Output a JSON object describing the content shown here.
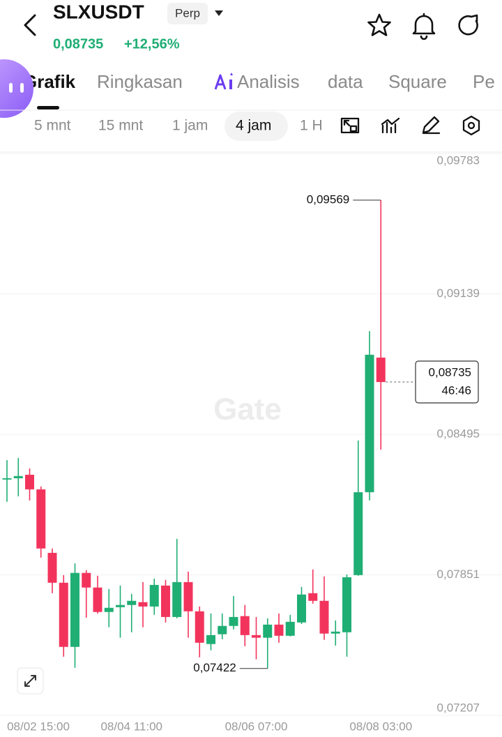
{
  "header": {
    "symbol": "SLXUSDT",
    "badge": "Perp",
    "price": "0,08735",
    "change": "+12,56%"
  },
  "tabs": [
    {
      "label": "Grafik",
      "active": true
    },
    {
      "label": "Ringkasan"
    },
    {
      "label": "Analisis"
    },
    {
      "label": "data"
    },
    {
      "label": "Square"
    },
    {
      "label": "Pe"
    }
  ],
  "intervals": [
    {
      "label": "5 mnt"
    },
    {
      "label": "15 mnt"
    },
    {
      "label": "1 jam"
    },
    {
      "label": "4 jam",
      "active": true
    },
    {
      "label": "1 H"
    }
  ],
  "chart_data": {
    "type": "candlestick",
    "watermark": "Gate",
    "categories": [
      "08/02 15:00",
      null,
      null,
      null,
      null,
      null,
      null,
      null,
      null,
      null,
      null,
      "08/04 11:00",
      null,
      null,
      null,
      null,
      null,
      null,
      null,
      null,
      null,
      null,
      "08/06 07:00",
      null,
      null,
      null,
      null,
      null,
      null,
      null,
      null,
      null,
      null,
      "08/08 03:00"
    ],
    "open": [
      0.08288,
      0.08294,
      0.0831,
      0.08243,
      0.07952,
      0.07815,
      0.07521,
      0.0786,
      0.07793,
      0.07681,
      0.07703,
      0.07713,
      0.07726,
      0.07706,
      0.07802,
      0.07658,
      0.07818,
      0.07684,
      0.07534,
      0.07579,
      0.07617,
      0.07662,
      0.07575,
      0.07563,
      0.07623,
      0.07572,
      0.07633,
      0.07767,
      0.07732,
      0.07582,
      0.07588,
      0.0785,
      0.0823,
      0.08847
    ],
    "high": [
      0.08377,
      0.08387,
      0.08339,
      0.08256,
      0.07972,
      0.0785,
      0.07904,
      0.07873,
      0.07847,
      0.07786,
      0.07802,
      0.07764,
      0.07818,
      0.07834,
      0.07828,
      0.08016,
      0.07866,
      0.07706,
      0.07674,
      0.07674,
      0.07754,
      0.07713,
      0.07658,
      0.07652,
      0.07674,
      0.07668,
      0.07796,
      0.07876,
      0.07844,
      0.07642,
      0.07853,
      0.08467,
      0.08968,
      0.09569
    ],
    "low": [
      0.08186,
      0.08211,
      0.08192,
      0.0793,
      0.07767,
      0.07476,
      0.07425,
      0.07655,
      0.07674,
      0.07611,
      0.07563,
      0.07588,
      0.07611,
      0.07668,
      0.07633,
      0.07652,
      0.07563,
      0.07473,
      0.07505,
      0.07556,
      0.07601,
      0.07524,
      0.07464,
      0.07422,
      0.0754,
      0.07569,
      0.07626,
      0.07719,
      0.07553,
      0.07527,
      0.07476,
      0.07847,
      0.08192,
      0.08425
    ],
    "close": [
      0.08294,
      0.08304,
      0.08243,
      0.07972,
      0.07815,
      0.07521,
      0.0786,
      0.07793,
      0.07681,
      0.077,
      0.07713,
      0.07732,
      0.07706,
      0.07805,
      0.07658,
      0.07818,
      0.07684,
      0.0754,
      0.07575,
      0.07617,
      0.07658,
      0.07575,
      0.07563,
      0.07623,
      0.07572,
      0.07636,
      0.07761,
      0.07732,
      0.07582,
      0.07591,
      0.0784,
      0.0823,
      0.0886,
      0.08735
    ],
    "ylim": [
      0.07207,
      0.09783
    ],
    "yticks": [
      {
        "value": 0.07207,
        "label": "0,07207"
      },
      {
        "value": 0.07851,
        "label": "0,07851"
      },
      {
        "value": 0.08495,
        "label": "0,08495"
      },
      {
        "value": 0.09139,
        "label": "0,09139"
      },
      {
        "value": 0.09783,
        "label": "0,09783"
      }
    ],
    "grid": true,
    "up_color": "#1fae74",
    "down_color": "#f2345c",
    "annotations": [
      {
        "value": 0.09569,
        "label": "0,09569"
      },
      {
        "value": 0.07422,
        "label": "0,07422"
      }
    ],
    "last_price": {
      "value": 0.08735,
      "label": "0,08735"
    },
    "countdown": "46:46"
  }
}
